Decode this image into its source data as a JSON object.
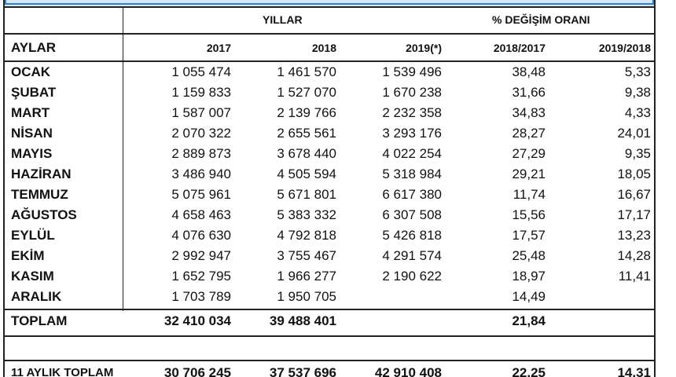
{
  "header": {
    "group_years": "YILLAR",
    "group_change": "% DEĞİŞİM ORANI",
    "col_months": "AYLAR",
    "col_2017": "2017",
    "col_2018": "2018",
    "col_2019": "2019(*)",
    "col_1817": "2018/2017",
    "col_1918": "2019/2018"
  },
  "rows": [
    {
      "m": "OCAK",
      "a": "1 055 474",
      "b": "1 461 570",
      "c": "1 539 496",
      "d": "38,48",
      "e": "5,33"
    },
    {
      "m": "ŞUBAT",
      "a": "1 159 833",
      "b": "1 527 070",
      "c": "1 670 238",
      "d": "31,66",
      "e": "9,38"
    },
    {
      "m": "MART",
      "a": "1 587 007",
      "b": "2 139 766",
      "c": "2 232 358",
      "d": "34,83",
      "e": "4,33"
    },
    {
      "m": "NİSAN",
      "a": "2 070 322",
      "b": "2 655 561",
      "c": "3 293 176",
      "d": "28,27",
      "e": "24,01"
    },
    {
      "m": "MAYIS",
      "a": "2 889 873",
      "b": "3 678 440",
      "c": "4 022 254",
      "d": "27,29",
      "e": "9,35"
    },
    {
      "m": "HAZİRAN",
      "a": "3 486 940",
      "b": "4 505 594",
      "c": "5 318 984",
      "d": "29,21",
      "e": "18,05"
    },
    {
      "m": "TEMMUZ",
      "a": "5 075 961",
      "b": "5 671 801",
      "c": "6 617 380",
      "d": "11,74",
      "e": "16,67"
    },
    {
      "m": "AĞUSTOS",
      "a": "4 658 463",
      "b": "5 383 332",
      "c": "6 307 508",
      "d": "15,56",
      "e": "17,17"
    },
    {
      "m": "EYLÜL",
      "a": "4 076 630",
      "b": "4 792 818",
      "c": "5 426 818",
      "d": "17,57",
      "e": "13,23"
    },
    {
      "m": "EKİM",
      "a": "2 992 947",
      "b": "3 755 467",
      "c": "4 291 574",
      "d": "25,48",
      "e": "14,28"
    },
    {
      "m": "KASIM",
      "a": "1 652 795",
      "b": "1 966 277",
      "c": "2 190 622",
      "d": "18,97",
      "e": "11,41"
    },
    {
      "m": "ARALIK",
      "a": "1 703 789",
      "b": "1 950 705",
      "c": "",
      "d": "14,49",
      "e": ""
    }
  ],
  "total": {
    "m": "TOPLAM",
    "a": "32 410 034",
    "b": "39 488 401",
    "c": "",
    "d": "21,84",
    "e": ""
  },
  "total11": {
    "m": "11 AYLIK TOPLAM",
    "a": "30 706 245",
    "b": "37 537 696",
    "c": "42 910 408",
    "d": "22,25",
    "e": "14,31"
  }
}
